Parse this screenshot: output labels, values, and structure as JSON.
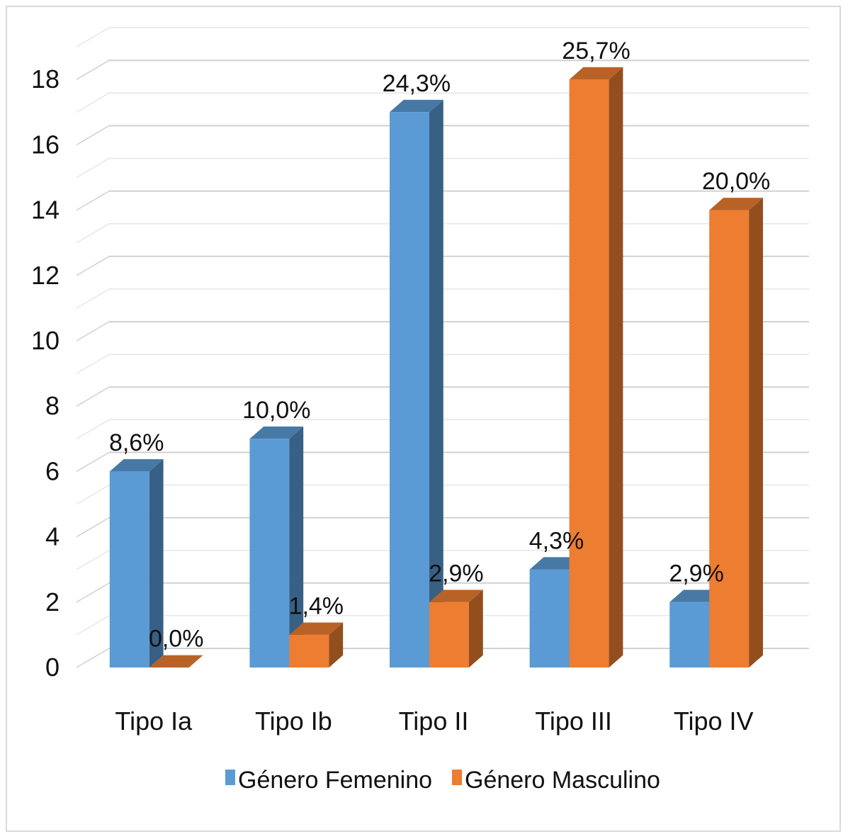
{
  "chart_data": {
    "type": "bar",
    "three_d": true,
    "categories": [
      "Tipo Ia",
      "Tipo Ib",
      "Tipo II",
      "Tipo III",
      "Tipo IV"
    ],
    "series": [
      {
        "name": "Género Femenino",
        "color": "#5B9BD5",
        "values": [
          6,
          7,
          17,
          3,
          2
        ],
        "labels": [
          "8,6%",
          "10,0%",
          "24,3%",
          "4,3%",
          "2,9%"
        ]
      },
      {
        "name": "Género Masculino",
        "color": "#ED7D31",
        "values": [
          0,
          1,
          2,
          18,
          14
        ],
        "labels": [
          "0,0%",
          "1,4%",
          "2,9%",
          "25,7%",
          "20,0%"
        ]
      }
    ],
    "y_ticks": [
      "0",
      "2",
      "4",
      "6",
      "8",
      "10",
      "12",
      "14",
      "16",
      "18"
    ],
    "ylim": [
      0,
      19
    ],
    "grid": true,
    "legend": "bottom"
  }
}
